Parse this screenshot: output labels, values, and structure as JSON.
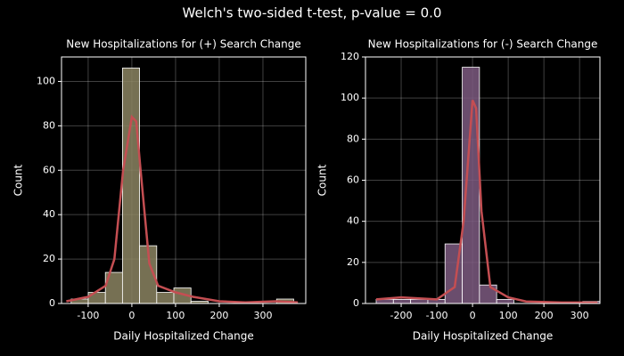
{
  "title": "Welch's two-sided t-test, p-value = 0.0",
  "chart_data": [
    {
      "type": "histogram",
      "title": "New Hospitalizations for (+) Search Change",
      "xlabel": "Daily Hospitalized Change",
      "ylabel": "Count",
      "bins": [
        -139,
        -99.8,
        -60.6,
        -21.5,
        17.7,
        56.9,
        96.1,
        135.3,
        174.5,
        213.7,
        252.8,
        292,
        331.2,
        370.4
      ],
      "counts": [
        2,
        5,
        14,
        106,
        26,
        5,
        7,
        1,
        0,
        0,
        0,
        0,
        2
      ],
      "color": "#8b8462",
      "kde": {
        "color": "#c44e52",
        "x": [
          -150,
          -100,
          -60,
          -40,
          -20,
          0,
          10,
          20,
          40,
          60,
          100,
          140,
          200,
          260,
          330,
          380
        ],
        "y": [
          1,
          3,
          8,
          20,
          60,
          84,
          82,
          60,
          18,
          8,
          5,
          3,
          1,
          0.5,
          1,
          0.5
        ]
      },
      "xlim": [
        -161,
        398
      ],
      "ylim": [
        0,
        111
      ],
      "xticks": [
        -100,
        0,
        100,
        200,
        300
      ],
      "yticks": [
        0,
        20,
        40,
        60,
        80,
        100
      ],
      "grid": true
    },
    {
      "type": "histogram",
      "title": "New Hospitalizations for (-) Search Change",
      "xlabel": "Daily Hospitalized Change",
      "ylabel": "Count",
      "bins": [
        -270,
        -221.8,
        -173.5,
        -125.3,
        -77.1,
        -28.8,
        19.4,
        67.6,
        115.8,
        164.1,
        212.3,
        260.5,
        308.8,
        357
      ],
      "counts": [
        2,
        2,
        2,
        2,
        29,
        115,
        9,
        2,
        0,
        0,
        0,
        0,
        1
      ],
      "color": "#7d5b80",
      "kde": {
        "color": "#c44e52",
        "x": [
          -270,
          -200,
          -100,
          -50,
          -25,
          0,
          10,
          25,
          50,
          100,
          150,
          250,
          350
        ],
        "y": [
          2,
          3,
          2,
          8,
          40,
          99,
          95,
          45,
          8,
          3,
          1,
          0.5,
          0.5
        ]
      },
      "xlim": [
        -300,
        357
      ],
      "ylim": [
        0,
        120
      ],
      "xticks": [
        -200,
        -100,
        0,
        100,
        200,
        300
      ],
      "yticks": [
        0,
        20,
        40,
        60,
        80,
        100,
        120
      ],
      "grid": true
    }
  ]
}
